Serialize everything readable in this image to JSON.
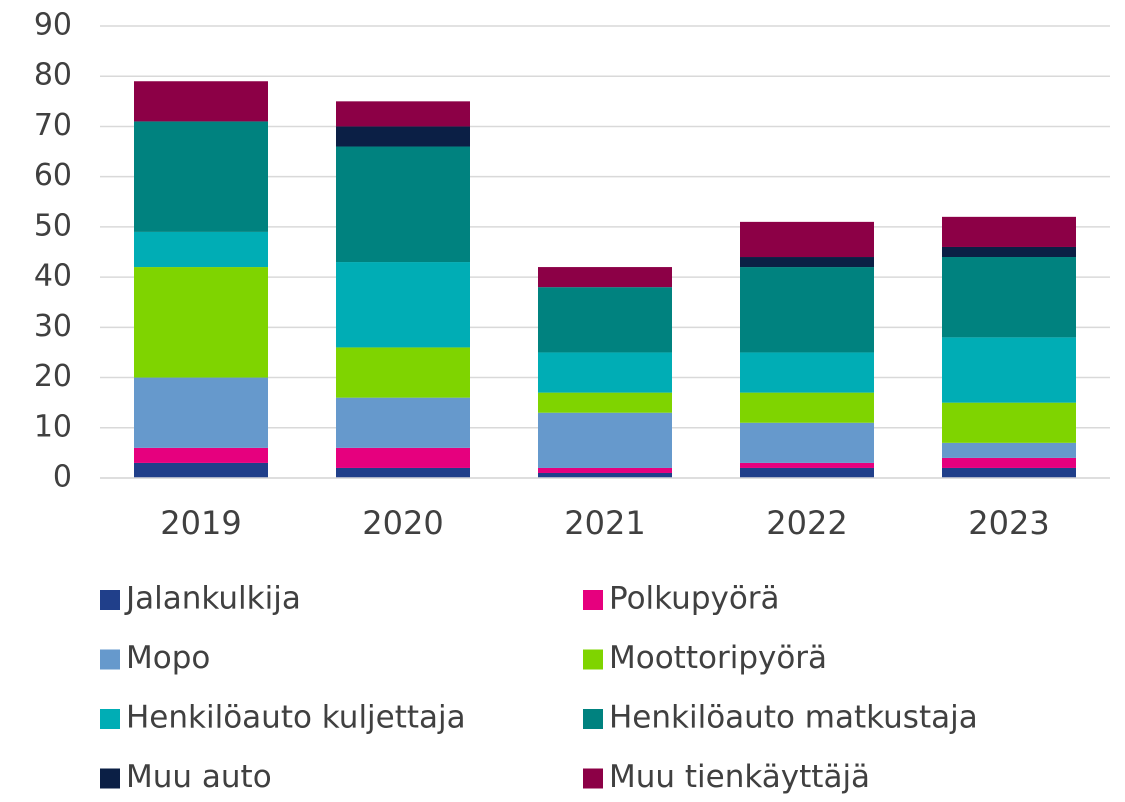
{
  "chart_data": {
    "type": "stacked_bar",
    "categories": [
      "2019",
      "2020",
      "2021",
      "2022",
      "2023"
    ],
    "series": [
      {
        "name": "Jalankulkija",
        "color": "#203f8a",
        "values": [
          3,
          2,
          1,
          2,
          2
        ]
      },
      {
        "name": "Polkupyörä",
        "color": "#e6007e",
        "values": [
          3,
          4,
          1,
          1,
          2
        ]
      },
      {
        "name": "Mopo",
        "color": "#6699cc",
        "values": [
          14,
          10,
          11,
          8,
          3
        ]
      },
      {
        "name": "Moottoripyörä",
        "color": "#7fd400",
        "values": [
          22,
          10,
          4,
          6,
          8
        ]
      },
      {
        "name": "Henkilöauto kuljettaja",
        "color": "#00adb5",
        "values": [
          7,
          17,
          8,
          8,
          13
        ]
      },
      {
        "name": "Henkilöauto matkustaja",
        "color": "#00827f",
        "values": [
          22,
          23,
          13,
          17,
          16
        ]
      },
      {
        "name": "Muu auto",
        "color": "#0b1f45",
        "values": [
          0,
          4,
          0,
          2,
          2
        ]
      },
      {
        "name": "Muu tienkäyttäjä",
        "color": "#8c0046",
        "values": [
          8,
          5,
          4,
          7,
          6
        ]
      }
    ],
    "ylim": [
      0,
      90
    ],
    "yticks": [
      0,
      10,
      20,
      30,
      40,
      50,
      60,
      70,
      80,
      90
    ],
    "grid": true
  }
}
